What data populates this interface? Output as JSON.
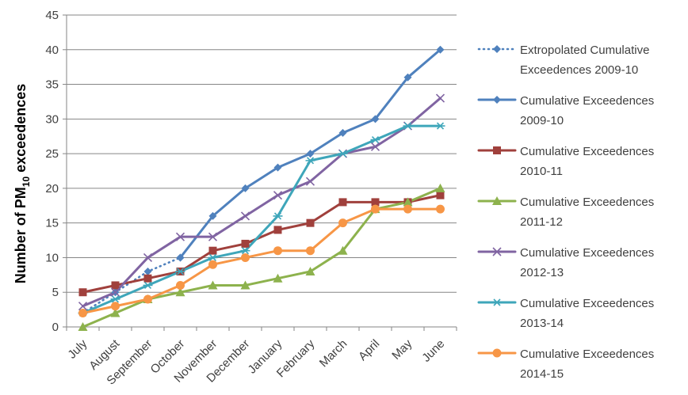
{
  "chart_data": {
    "type": "line",
    "title": "",
    "xlabel": "",
    "ylabel": "Number of PM10 exceedences",
    "ylabel_main": "Number of PM",
    "ylabel_sub": "10",
    "ylabel_tail": " exceedences",
    "ylim": [
      0,
      45
    ],
    "y_ticks": [
      0,
      5,
      10,
      15,
      20,
      25,
      30,
      35,
      40,
      45
    ],
    "grid": "horizontal gridlines on",
    "legend_position": "right",
    "categories": [
      "July",
      "August",
      "September",
      "October",
      "November",
      "December",
      "January",
      "February",
      "March",
      "April",
      "May",
      "June"
    ],
    "series": [
      {
        "name": "Extropolated Cumulative Exceedences 2009-10",
        "legend_lines": [
          "Extropolated Cumulative",
          "Exceedences 2009-10"
        ],
        "color": "#4f81bd",
        "dash": "dotted",
        "marker": "diamond",
        "values": [
          2,
          5,
          8,
          10,
          null,
          null,
          null,
          null,
          null,
          null,
          null,
          null
        ]
      },
      {
        "name": "Cumulative Exceedences 2009-10",
        "legend_lines": [
          "Cumulative Exceedences",
          "2009-10"
        ],
        "color": "#4f81bd",
        "dash": "solid",
        "marker": "diamond",
        "values": [
          null,
          null,
          null,
          10,
          16,
          20,
          23,
          25,
          28,
          30,
          36,
          40
        ]
      },
      {
        "name": "Cumulative Exceedences 2010-11",
        "legend_lines": [
          "Cumulative Exceedences",
          "2010-11"
        ],
        "color": "#a0403c",
        "dash": "solid",
        "marker": "square",
        "values": [
          5,
          6,
          7,
          8,
          11,
          12,
          14,
          15,
          18,
          18,
          18,
          19
        ]
      },
      {
        "name": "Cumulative Exceedences 2011-12",
        "legend_lines": [
          "Cumulative Exceedences",
          "2011-12"
        ],
        "color": "#8db24d",
        "dash": "solid",
        "marker": "triangle",
        "values": [
          0,
          2,
          4,
          5,
          6,
          6,
          7,
          8,
          11,
          17,
          18,
          20
        ]
      },
      {
        "name": "Cumulative Exceedences 2012-13",
        "legend_lines": [
          "Cumulative Exceedences",
          "2012-13"
        ],
        "color": "#8064a2",
        "dash": "solid",
        "marker": "x",
        "values": [
          3,
          5,
          10,
          13,
          13,
          16,
          19,
          21,
          25,
          26,
          29,
          33
        ]
      },
      {
        "name": "Cumulative Exceedences 2013-14",
        "legend_lines": [
          "Cumulative Exceedences",
          "2013-14"
        ],
        "color": "#3ea6ba",
        "dash": "solid",
        "marker": "star",
        "values": [
          2,
          4,
          6,
          8,
          10,
          11,
          16,
          24,
          25,
          27,
          29,
          29
        ]
      },
      {
        "name": "Cumulative Exceedences 2014-15",
        "legend_lines": [
          "Cumulative Exceedences",
          "2014-15"
        ],
        "color": "#f79646",
        "dash": "solid",
        "marker": "circle",
        "values": [
          2,
          3,
          4,
          6,
          9,
          10,
          11,
          11,
          15,
          17,
          17,
          17
        ]
      }
    ]
  }
}
